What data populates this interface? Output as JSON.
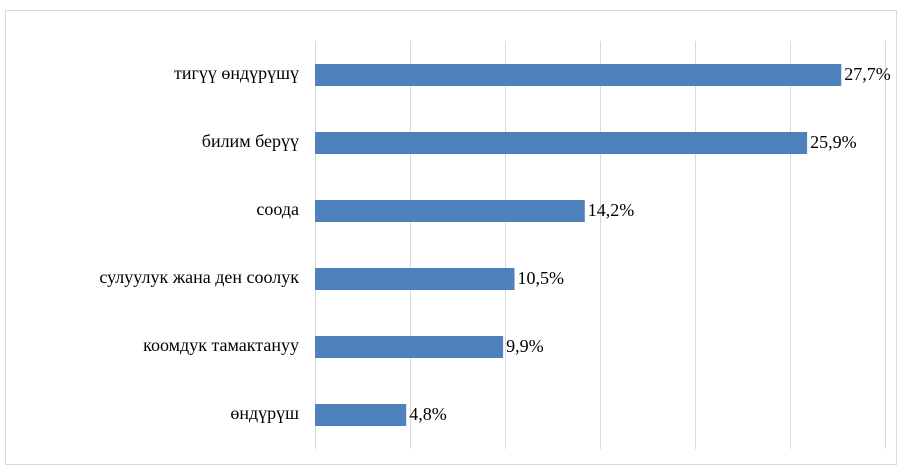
{
  "chart_data": {
    "type": "bar",
    "orientation": "horizontal",
    "categories": [
      "тигүү өндүрүшү",
      "билим берүү",
      "соода",
      "сулуулук жана ден соолук",
      "коомдук тамактануу",
      "өндүрүш"
    ],
    "values": [
      27.7,
      25.9,
      14.2,
      10.5,
      9.9,
      4.8
    ],
    "value_labels": [
      "27,7%",
      "25,9%",
      "14,2%",
      "10,5%",
      "9,9%",
      "4,8%"
    ],
    "color": "#4f81bd",
    "xlim": [
      0,
      30
    ],
    "xticks": [
      0,
      5,
      10,
      15,
      20,
      25,
      30
    ],
    "grid": true
  }
}
